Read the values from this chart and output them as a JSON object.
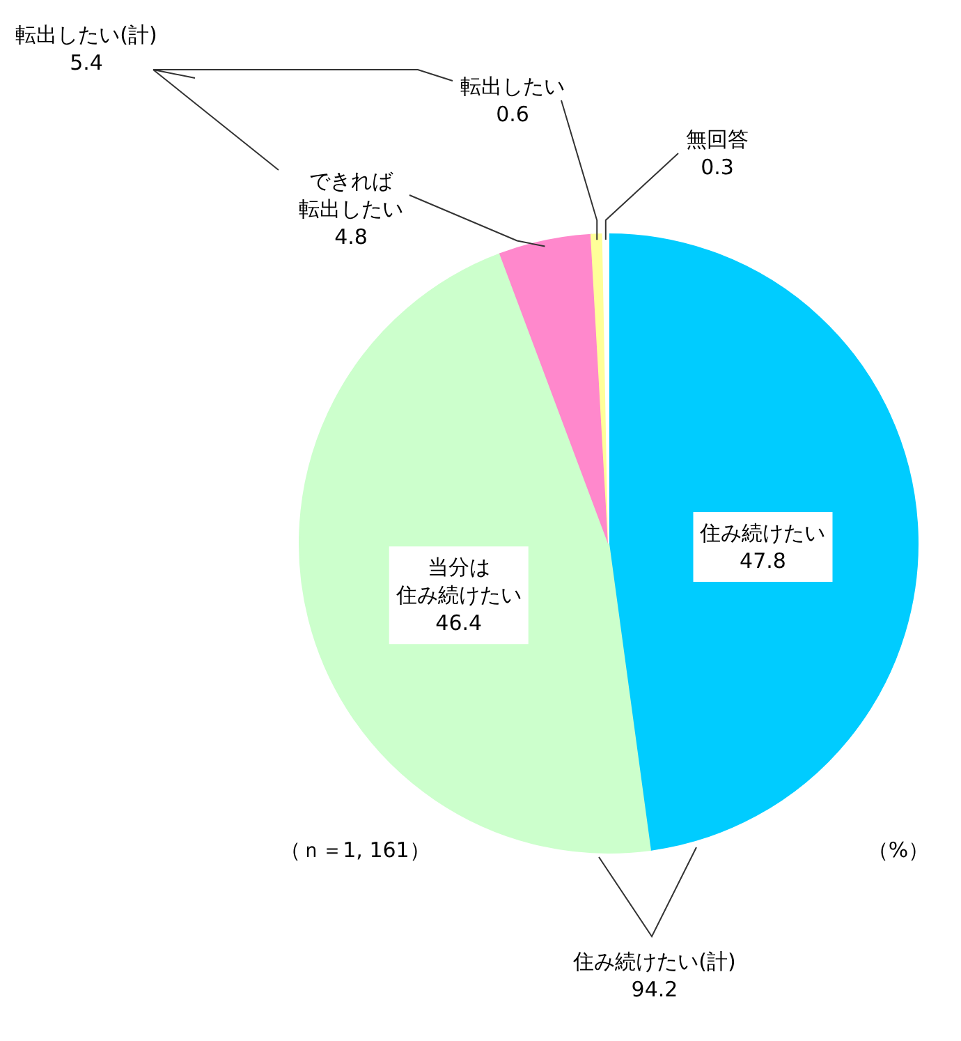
{
  "chart_data": {
    "type": "pie",
    "categories": [
      "住み続けたい",
      "当分は住み続けたい",
      "できれば転出したい",
      "転出したい",
      "無回答"
    ],
    "values": [
      47.8,
      46.4,
      4.8,
      0.6,
      0.3
    ],
    "colors": [
      "#00ccff",
      "#ccffcc",
      "#ff88cc",
      "#ffff99",
      "#ffffff"
    ],
    "data_labels": true,
    "annotations": [
      "転出したい(計)\n5.4",
      "住み続けたい(計)\n94.2",
      "（ｎ＝1, 161）",
      "（%）"
    ]
  }
}
